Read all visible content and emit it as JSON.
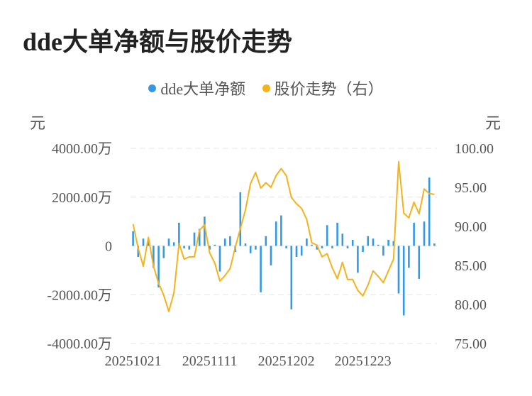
{
  "title": "dde大单净额与股价走势",
  "legend": [
    {
      "label": "dde大单净额",
      "color": "#3399e6"
    },
    {
      "label": "股价走势（右）",
      "color": "#f5b21c"
    }
  ],
  "chart_data": {
    "type": "bar+line",
    "left_axis": {
      "unit": "元",
      "ticks": [
        "4000.00万",
        "2000.00万",
        "0",
        "-2000.00万",
        "-4000.00万"
      ],
      "min": -4000,
      "max": 4000
    },
    "right_axis": {
      "unit": "元",
      "ticks": [
        "100.00",
        "95.00",
        "90.00",
        "85.00",
        "80.00",
        "75.00"
      ],
      "min": 75,
      "max": 100
    },
    "x_tick_labels": [
      "20251021",
      "20251111",
      "20251202",
      "20251223"
    ],
    "x_tick_index": [
      0,
      15,
      30,
      45
    ],
    "grid": true,
    "series": [
      {
        "name": "dde大单净额",
        "type": "bar",
        "color": "#3399e6",
        "unit": "万元",
        "values": [
          600,
          -450,
          300,
          250,
          -900,
          -1700,
          -500,
          300,
          150,
          950,
          -100,
          -150,
          550,
          700,
          1200,
          -150,
          50,
          -1050,
          300,
          400,
          -250,
          2200,
          100,
          -300,
          -150,
          -1900,
          400,
          -800,
          1000,
          1250,
          -100,
          -2600,
          -450,
          -400,
          300,
          50,
          -150,
          -100,
          850,
          -100,
          950,
          500,
          -100,
          250,
          -1100,
          -250,
          400,
          300,
          50,
          -400,
          250,
          200,
          -1950,
          -2850,
          -900,
          950,
          -1350,
          1000,
          2800,
          100
        ]
      },
      {
        "name": "股价走势（右）",
        "type": "line",
        "color": "#f5b21c",
        "unit": "元",
        "values": [
          90.3,
          87.2,
          84.9,
          88.6,
          84.9,
          82.7,
          81.2,
          79.1,
          81.5,
          87.8,
          85.8,
          86.1,
          86.1,
          89.5,
          90.2,
          86.6,
          85.3,
          83.0,
          83.7,
          84.6,
          87.3,
          89.7,
          92.1,
          95.5,
          96.9,
          94.9,
          95.6,
          95.0,
          96.5,
          97.4,
          96.5,
          93.7,
          92.9,
          92.3,
          90.9,
          87.9,
          87.6,
          86.1,
          86.5,
          84.7,
          83.3,
          85.4,
          83.2,
          83.2,
          81.8,
          81.1,
          82.5,
          84.3,
          83.6,
          82.8,
          84.3,
          85.8,
          98.3,
          91.7,
          91.1,
          93.1,
          91.6,
          94.8,
          94.2,
          94.1
        ]
      }
    ]
  }
}
